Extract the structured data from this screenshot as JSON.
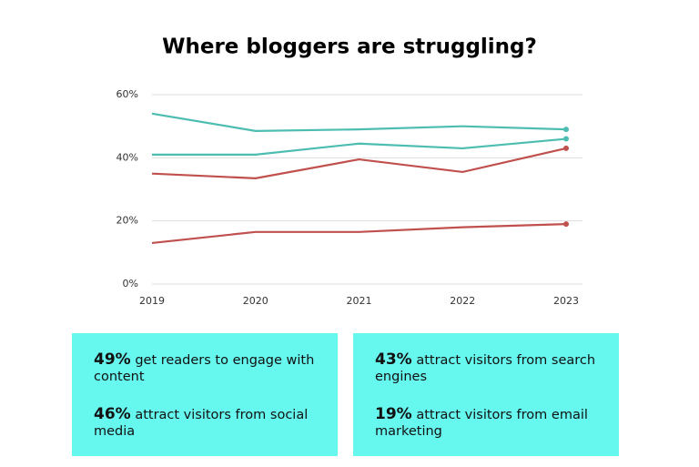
{
  "chart_data": {
    "type": "line",
    "title": "Where bloggers are struggling?",
    "categories": [
      "2019",
      "2020",
      "2021",
      "2022",
      "2023"
    ],
    "series": [
      {
        "color": "#4dbdb1",
        "values": [
          54,
          48.5,
          49,
          50,
          49
        ]
      },
      {
        "color": "#4dbdb1",
        "values": [
          41,
          41,
          44.5,
          43,
          46
        ]
      },
      {
        "color": "#c0504d",
        "values": [
          35,
          33.5,
          39.5,
          35.5,
          43
        ]
      },
      {
        "color": "#c0504d",
        "values": [
          13,
          16.5,
          16.5,
          18,
          19
        ]
      }
    ],
    "ylim": [
      0,
      60
    ],
    "yticks": [
      {
        "value": 0,
        "label": "0%"
      },
      {
        "value": 20,
        "label": "20%"
      },
      {
        "value": 40,
        "label": "40%"
      },
      {
        "value": 60,
        "label": "60%"
      }
    ],
    "grid": true
  },
  "boxes": [
    {
      "items": [
        {
          "stat": "49%",
          "text": "get readers to engage with content"
        },
        {
          "stat": "46%",
          "text": "attract visitors from social media"
        }
      ]
    },
    {
      "items": [
        {
          "stat": "43%",
          "text": "attract visitors from search engines"
        },
        {
          "stat": "19%",
          "text": "attract visitors from email marketing"
        }
      ]
    }
  ]
}
